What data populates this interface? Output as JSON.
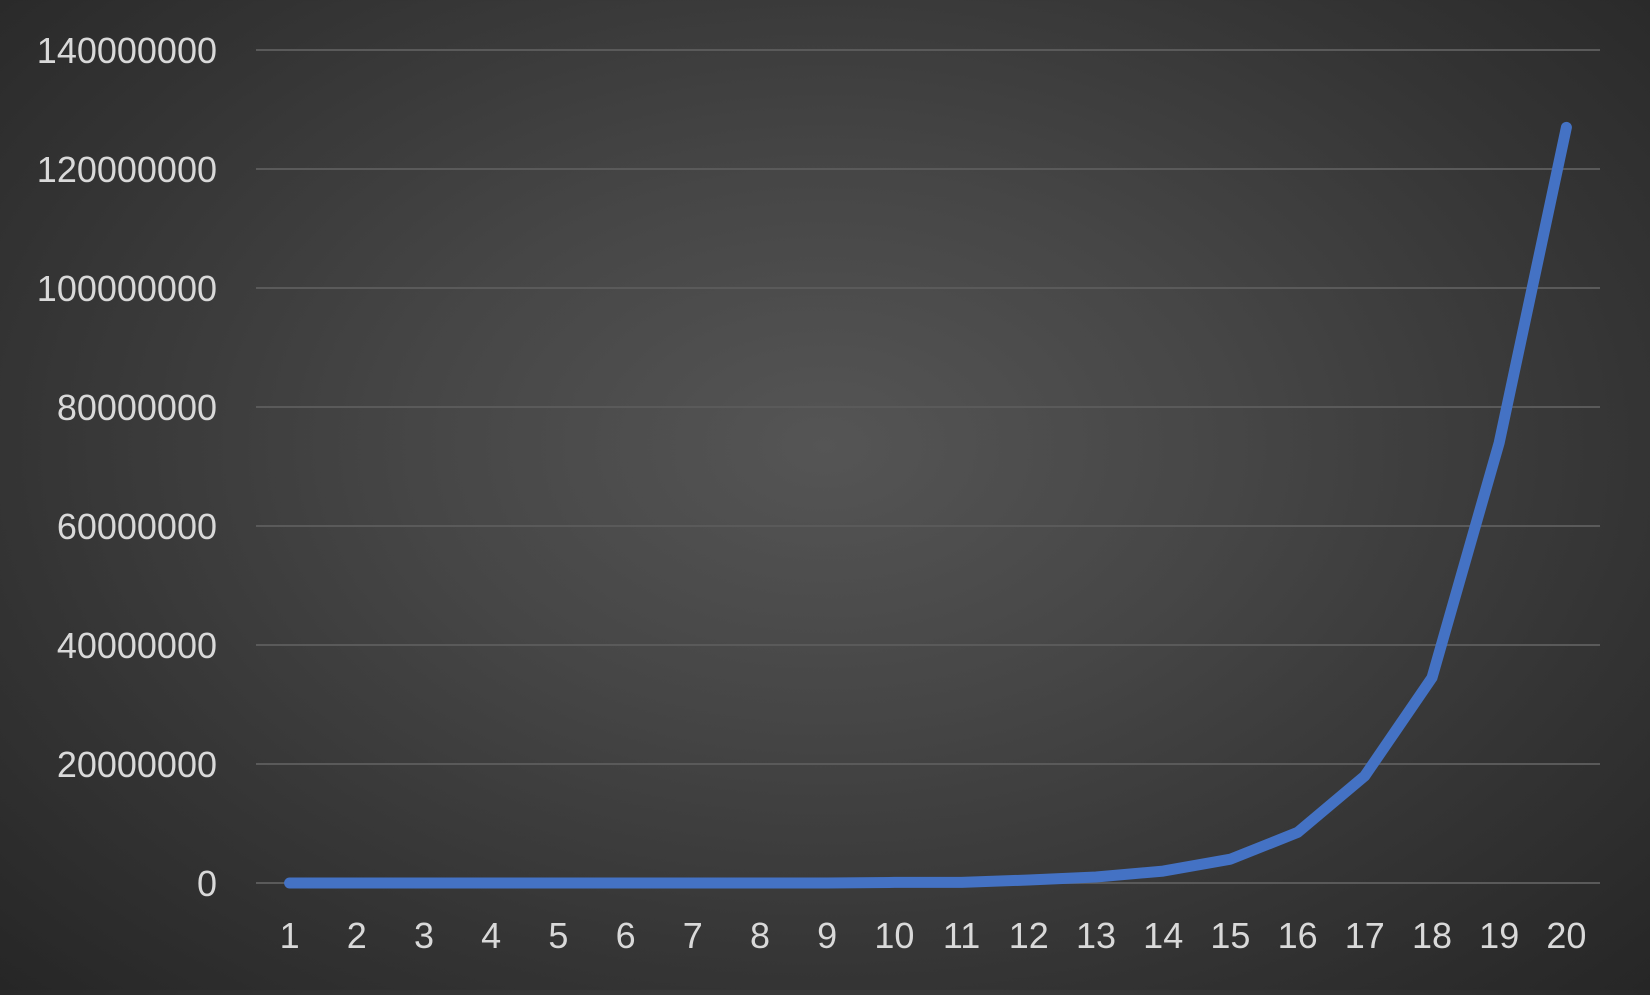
{
  "chart_data": {
    "type": "line",
    "title": "",
    "xlabel": "",
    "ylabel": "",
    "categories": [
      "1",
      "2",
      "3",
      "4",
      "5",
      "6",
      "7",
      "8",
      "9",
      "10",
      "11",
      "12",
      "13",
      "14",
      "15",
      "16",
      "17",
      "18",
      "19",
      "20"
    ],
    "series": [
      {
        "color": "#4472c4",
        "values": [
          0,
          0,
          0,
          0,
          0,
          0,
          0,
          0,
          0,
          100000,
          100000,
          500000,
          1000000,
          2000000,
          4000000,
          8500000,
          18000000,
          34500000,
          74000000,
          127000000
        ]
      }
    ],
    "ylim": [
      0,
      140000000
    ],
    "yticks": [
      "0",
      "20000000",
      "40000000",
      "60000000",
      "80000000",
      "100000000",
      "120000000",
      "140000000"
    ],
    "grid": true,
    "legend": "none"
  },
  "colors": {
    "gridline": "#5a5a5a",
    "tick_text": "#d9d9d9",
    "series": "#4472c4"
  }
}
